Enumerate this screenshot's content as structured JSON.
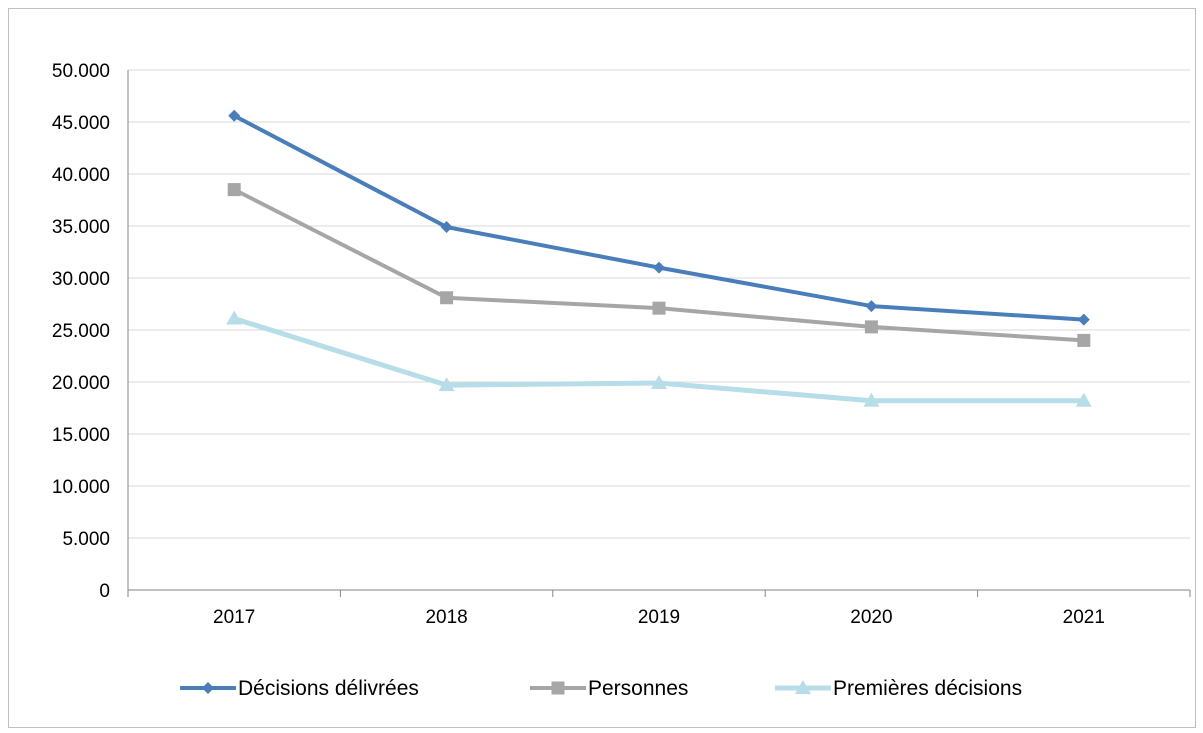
{
  "chart_data": {
    "type": "line",
    "title": "",
    "xlabel": "",
    "ylabel": "",
    "categories": [
      "2017",
      "2018",
      "2019",
      "2020",
      "2021"
    ],
    "ylim": [
      0,
      50000
    ],
    "yticks": [
      0,
      5000,
      10000,
      15000,
      20000,
      25000,
      30000,
      35000,
      40000,
      45000,
      50000
    ],
    "ytick_labels": [
      "0",
      "5.000",
      "10.000",
      "15.000",
      "20.000",
      "25.000",
      "30.000",
      "35.000",
      "40.000",
      "45.000",
      "50.000"
    ],
    "grid": "horizontal",
    "legend_position": "bottom",
    "series": [
      {
        "name": "Décisions délivrées",
        "values": [
          45600,
          34900,
          31000,
          27300,
          26000
        ],
        "color": "#4a7ebb",
        "marker": "diamond"
      },
      {
        "name": "Personnes",
        "values": [
          38500,
          28100,
          27100,
          25300,
          24000
        ],
        "color": "#a6a6a6",
        "marker": "square"
      },
      {
        "name": "Premières décisions",
        "values": [
          26100,
          19700,
          19900,
          18200,
          18200
        ],
        "color": "#b7dde8",
        "marker": "triangle"
      }
    ]
  }
}
